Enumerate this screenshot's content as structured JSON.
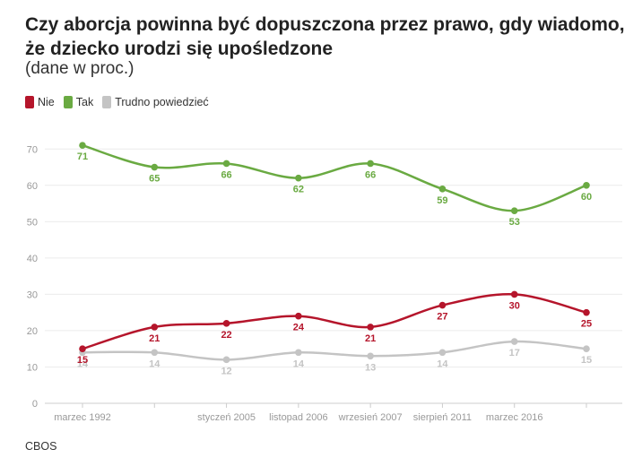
{
  "title": "Czy aborcja powinna być dopuszczona przez prawo, gdy wiadomo, że dziecko urodzi się upośledzone",
  "subtitle": "(dane w proc.)",
  "source": "CBOS",
  "legend": [
    {
      "name": "Nie",
      "color": "#b5152b"
    },
    {
      "name": "Tak",
      "color": "#6aaa42"
    },
    {
      "name": "Trudno powiedzieć",
      "color": "#c4c4c4"
    }
  ],
  "chart_data": {
    "type": "line",
    "x": [
      "marzec 1992",
      "",
      "styczeń 2005",
      "listopad 2006",
      "wrzesień 2007",
      "sierpień 2011",
      "marzec 2016",
      ""
    ],
    "series": [
      {
        "name": "Nie",
        "color": "#b5152b",
        "values": [
          15,
          21,
          22,
          24,
          21,
          27,
          30,
          25
        ]
      },
      {
        "name": "Tak",
        "color": "#6aaa42",
        "values": [
          71,
          65,
          66,
          62,
          66,
          59,
          53,
          60
        ]
      },
      {
        "name": "Trudno powiedzieć",
        "color": "#c4c4c4",
        "values": [
          14,
          14,
          12,
          14,
          13,
          14,
          17,
          15
        ]
      }
    ],
    "ylim": [
      0,
      75
    ],
    "yticks": [
      0,
      10,
      20,
      30,
      40,
      50,
      60,
      70
    ],
    "grid": true,
    "legend_position": "top-left"
  }
}
